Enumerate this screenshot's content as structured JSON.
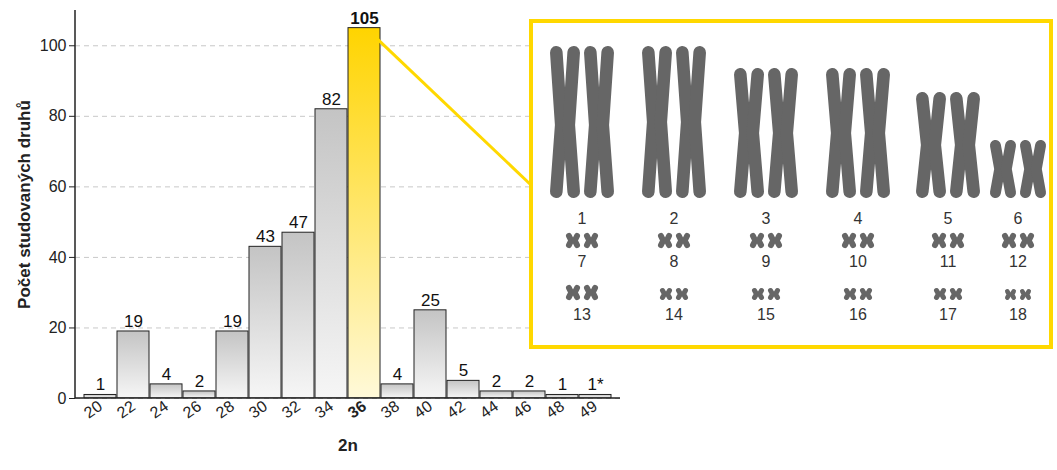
{
  "chart_data": {
    "type": "bar",
    "x_label": "2n",
    "y_label": "Počet studovaných druhů",
    "categories": [
      "20",
      "22",
      "24",
      "26",
      "28",
      "30",
      "32",
      "34",
      "36",
      "38",
      "40",
      "42",
      "44",
      "46",
      "48",
      "49"
    ],
    "values": [
      1,
      19,
      4,
      2,
      19,
      43,
      47,
      82,
      105,
      4,
      25,
      5,
      2,
      2,
      1,
      1
    ],
    "value_labels": [
      "1",
      "19",
      "4",
      "2",
      "19",
      "43",
      "47",
      "82",
      "105",
      "4",
      "25",
      "5",
      "2",
      "2",
      "1",
      "1*"
    ],
    "colors": [
      "#c4c4c4",
      "#c4c4c4",
      "#c4c4c4",
      "#c4c4c4",
      "#c4c4c4",
      "#c4c4c4",
      "#c4c4c4",
      "#c4c4c4",
      "#ffd400",
      "#c4c4c4",
      "#c4c4c4",
      "#c4c4c4",
      "#c4c4c4",
      "#c4c4c4",
      "#c4c4c4",
      "#c4c4c4"
    ],
    "ylim": [
      0,
      110
    ],
    "yticks": [
      0,
      20,
      40,
      60,
      80,
      100
    ],
    "grid": true,
    "data_labels": true,
    "inset_labels": [
      1,
      2,
      3,
      4,
      5,
      6,
      7,
      8,
      9,
      10,
      11,
      12,
      13,
      14,
      15,
      16,
      17,
      18
    ]
  }
}
